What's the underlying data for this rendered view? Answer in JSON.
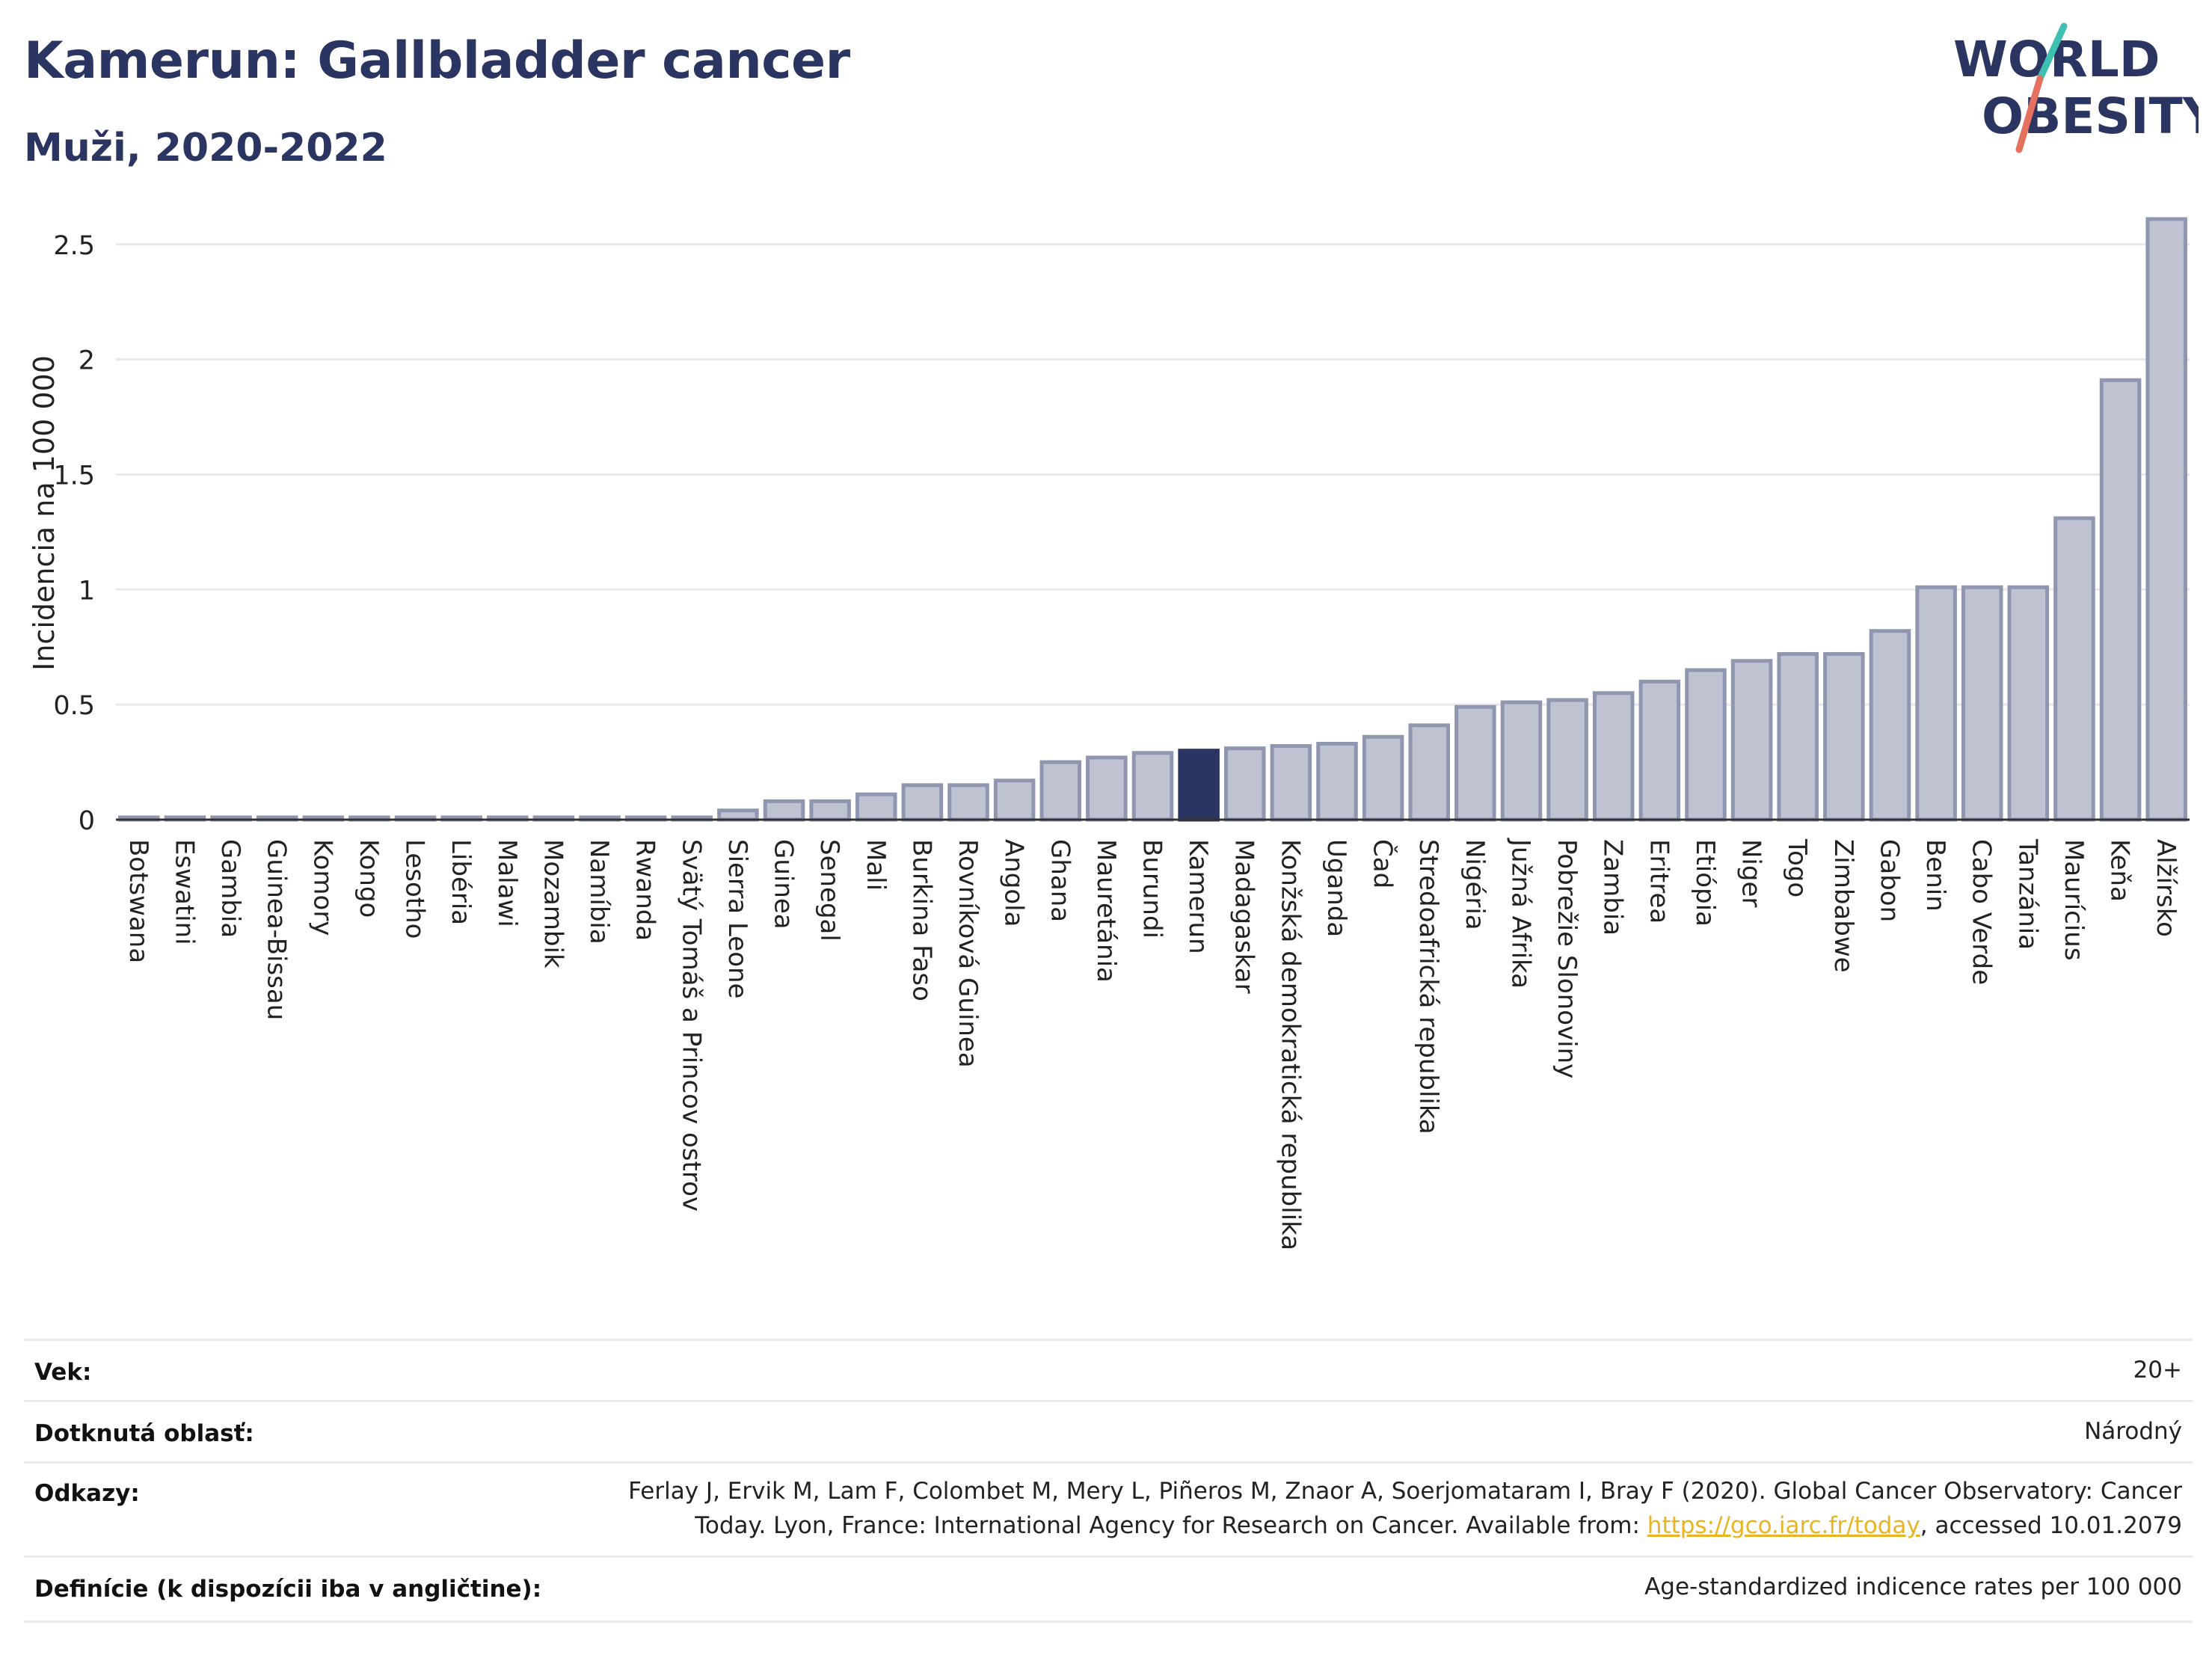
{
  "header": {
    "title": "Kamerun: Gallbladder cancer",
    "subtitle": "Muži, 2020-2022"
  },
  "logo": {
    "line1": "WORLD",
    "line2": "OBESITY",
    "colors": {
      "text": "#2b3561",
      "slash_top": "#3fbfb2",
      "slash_bottom": "#e5705e"
    }
  },
  "chart_data": {
    "type": "bar",
    "ylabel": "Incidencia na 100 000",
    "xlabel": "",
    "ylim": [
      0,
      2.6
    ],
    "yticks": [
      0,
      0.5,
      1,
      1.5,
      2,
      2.5
    ],
    "ytick_labels": [
      "0",
      "0.5",
      "1",
      "1.5",
      "2",
      "2.5"
    ],
    "grid": true,
    "highlight": "Kamerun",
    "colors": {
      "bar": "#bfc3d1",
      "bar_edge": "#8f96b0",
      "highlight": "#2b3561"
    },
    "categories": [
      "Botswana",
      "Eswatini",
      "Gambia",
      "Guinea-Bissau",
      "Komory",
      "Kongo",
      "Lesotho",
      "Libéria",
      "Malawi",
      "Mozambik",
      "Namíbia",
      "Rwanda",
      "Svätý Tomáš a Princov ostrov",
      "Sierra Leone",
      "Guinea",
      "Senegal",
      "Mali",
      "Burkina Faso",
      "Rovníková Guinea",
      "Angola",
      "Ghana",
      "Mauretánia",
      "Burundi",
      "Kamerun",
      "Madagaskar",
      "Konžská demokratická republika",
      "Uganda",
      "Čad",
      "Stredoafrická republika",
      "Nigéria",
      "Južná Afrika",
      "Pobrežie Slonoviny",
      "Zambia",
      "Eritrea",
      "Etiópia",
      "Niger",
      "Togo",
      "Zimbabwe",
      "Gabon",
      "Benin",
      "Cabo Verde",
      "Tanzánia",
      "Maurícius",
      "Keňa",
      "Alžírsko"
    ],
    "values": [
      0.01,
      0.01,
      0.01,
      0.01,
      0.01,
      0.01,
      0.01,
      0.01,
      0.01,
      0.01,
      0.01,
      0.01,
      0.01,
      0.04,
      0.08,
      0.08,
      0.11,
      0.15,
      0.15,
      0.17,
      0.25,
      0.27,
      0.29,
      0.3,
      0.31,
      0.32,
      0.33,
      0.36,
      0.41,
      0.49,
      0.51,
      0.52,
      0.55,
      0.6,
      0.65,
      0.69,
      0.72,
      0.72,
      0.82,
      1.01,
      1.01,
      1.01,
      1.31,
      1.91,
      2.61
    ]
  },
  "meta": {
    "age": {
      "label": "Vek:",
      "value": "20+"
    },
    "area": {
      "label": "Dotknutá oblasť:",
      "value": "Národný"
    },
    "refs": {
      "label": "Odkazy:",
      "line1": "Ferlay J, Ervik M, Lam F, Colombet M, Mery L, Piñeros M, Znaor A, Soerjomataram I, Bray F (2020). Global Cancer Observatory: Cancer",
      "line2_before": "Today. Lyon, France: International Agency for Research on Cancer. Available from: ",
      "link": "https://gco.iarc.fr/today",
      "line2_after": ", accessed 10.01.2079"
    },
    "definitions": {
      "label": "Definície (k dispozícii iba v angličtine):",
      "value": "Age-standardized indicence rates per 100 000"
    }
  }
}
